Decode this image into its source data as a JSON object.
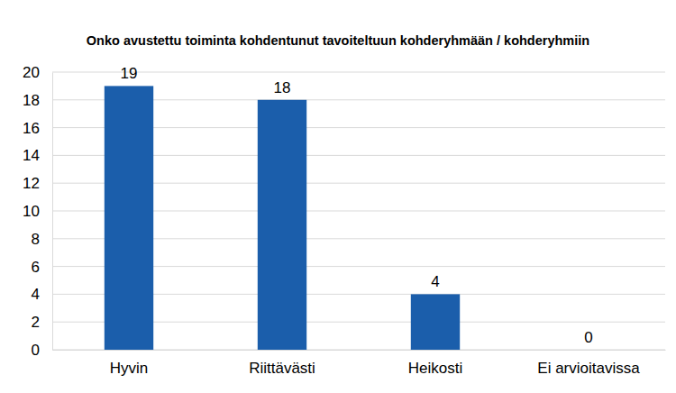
{
  "chart_data": {
    "type": "bar",
    "title": "Onko avustettu toiminta kohdentunut tavoiteltuun kohderyhmään / kohderyhmiin",
    "categories": [
      "Hyvin",
      "Riittävästi",
      "Heikosti",
      "Ei arvioitavissa"
    ],
    "values": [
      19,
      18,
      4,
      0
    ],
    "color": "#1b5eab",
    "ylim": [
      0,
      20
    ],
    "yticks": [
      0,
      2,
      4,
      6,
      8,
      10,
      12,
      14,
      16,
      18,
      20
    ],
    "grid": true,
    "data_labels": true
  }
}
